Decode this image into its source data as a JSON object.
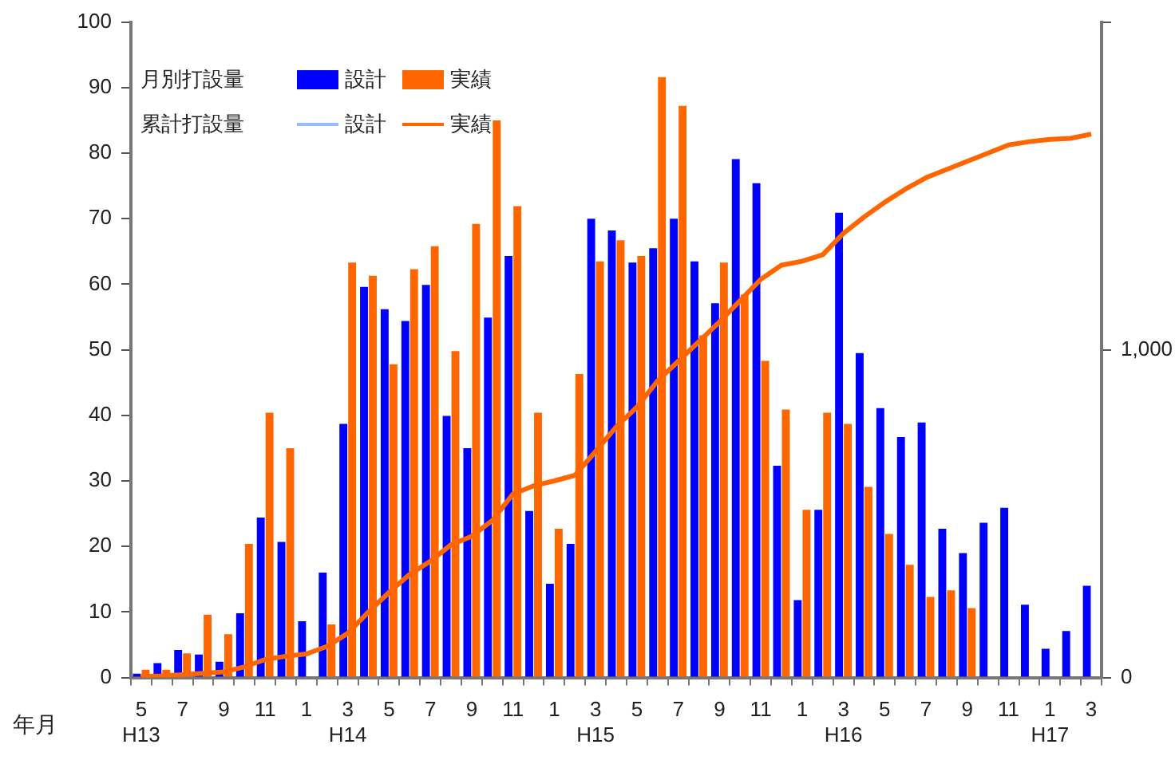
{
  "chart_data": {
    "type": "bar",
    "xlabel": "年月",
    "legend_title": "月別打設量",
    "annotations": [
      "累計打設量"
    ],
    "categories": [
      "5\nH13",
      null,
      "7",
      null,
      "9",
      null,
      "11",
      null,
      "1",
      null,
      "3\nH14",
      null,
      "5",
      null,
      "7",
      null,
      "9",
      null,
      "11",
      null,
      "1",
      null,
      "3\nH15",
      null,
      "5",
      null,
      "7",
      null,
      "9",
      null,
      "11",
      null,
      "1",
      null,
      "3\nH16",
      null,
      "5",
      null,
      "7",
      null,
      "9",
      null,
      "11",
      null,
      "1\nH17",
      null,
      "3"
    ],
    "series": [
      {
        "name": "設計",
        "color": "#0000ff",
        "values": [
          0.6,
          2.2,
          4.2,
          3.5,
          2.4,
          9.8,
          24.4,
          20.7,
          8.6,
          16,
          38.7,
          59.6,
          56.2,
          54.4,
          59.9,
          39.9,
          35,
          54.9,
          64.3,
          25.4,
          14.3,
          20.4,
          70,
          68.2,
          63.3,
          65.5,
          70,
          63.5,
          57.1,
          79.1,
          75.4,
          32.3,
          11.8,
          25.6,
          70.9,
          49.5,
          41.1,
          36.7,
          38.9,
          22.7,
          19,
          23.6,
          25.9,
          11.1,
          4.4,
          7.1,
          14
        ]
      },
      {
        "name": "実績",
        "color": "#ff6600",
        "values": [
          1.2,
          1.2,
          3.7,
          9.6,
          6.6,
          20.4,
          40.4,
          35,
          null,
          8.1,
          63.3,
          61.3,
          47.8,
          62.3,
          65.8,
          49.8,
          69.2,
          85,
          71.9,
          40.4,
          22.7,
          46.3,
          63.5,
          66.7,
          64.3,
          91.6,
          87.2,
          52.2,
          63.3,
          58.4,
          48.3,
          40.9,
          25.6,
          40.4,
          38.7,
          29.1,
          21.9,
          17.2,
          12.3,
          13.3,
          10.6,
          null,
          null,
          null,
          null,
          null,
          null
        ]
      },
      {
        "name": "設計",
        "type": "line",
        "axis": "y2",
        "color": "#99bbff",
        "values": [
          null,
          null,
          null,
          null,
          null,
          null,
          null,
          null,
          null,
          null,
          null,
          null,
          null,
          null,
          null,
          null,
          null,
          null,
          null,
          null,
          null,
          null,
          null,
          null,
          null,
          null,
          null,
          null,
          null,
          null,
          null,
          null,
          null,
          null,
          null,
          null,
          null,
          null,
          null,
          null,
          null,
          null,
          null,
          null,
          null,
          null,
          null
        ]
      },
      {
        "name": "実績",
        "type": "line",
        "axis": "y2",
        "color": "#ff6600",
        "values": [
          3,
          5,
          9,
          13,
          17,
          33,
          55,
          65,
          72,
          95,
          135,
          200,
          260,
          315,
          355,
          405,
          431,
          479,
          560,
          585,
          600,
          617,
          690,
          765,
          825,
          905,
          965,
          1025,
          1085,
          1150,
          1215,
          1258,
          1270,
          1290,
          1355,
          1405,
          1450,
          1490,
          1525,
          1550,
          1575,
          1600,
          1625,
          1635,
          1642,
          1645,
          1658
        ]
      }
    ],
    "ylim": [
      0,
      100
    ],
    "yticks": [
      0,
      10,
      20,
      30,
      40,
      50,
      60,
      70,
      80,
      90,
      100
    ],
    "y2lim": [
      0,
      2000
    ],
    "y2ticks": [
      0,
      {
        "value": 1000,
        "label": "1,000"
      },
      {
        "value": 2000,
        "label": null
      }
    ],
    "grid": false,
    "legend": "top left"
  }
}
